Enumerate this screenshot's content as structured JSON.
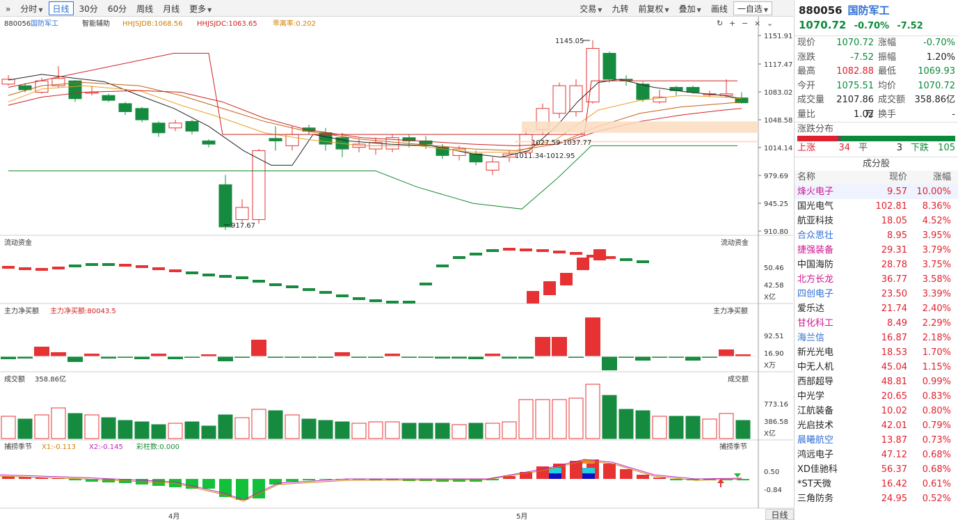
{
  "toolbar": {
    "left": [
      "分时",
      "日线",
      "30分",
      "60分",
      "周线",
      "月线",
      "更多"
    ],
    "active": "日线",
    "right": [
      "交易",
      "九转",
      "前复权",
      "叠加",
      "画线",
      "一自选"
    ]
  },
  "chart": {
    "legend_main": {
      "code": "880056",
      "name": "国防军工",
      "assist": "智能辅助",
      "jsdb": "HHJSJDB:1068.56",
      "jsdc": "HHJSJDC:1063.65",
      "lilv": "乖离率:0.202"
    },
    "price_axis": [
      "1151.91",
      "1117.47",
      "1083.02",
      "1048.58",
      "1014.14",
      "979.69",
      "945.25",
      "910.80"
    ],
    "annotations": {
      "high": "1145.05",
      "low": "917.67",
      "zone1": "1027.59-1037.77",
      "zone2": "1011.34-1012.95"
    },
    "sub1": {
      "title": "流动资金",
      "axis": [
        "50.46",
        "42.58"
      ],
      "unit": "X亿"
    },
    "sub2": {
      "title": "主力净买额",
      "value": "主力净买额:80043.5",
      "axis": [
        "92.51",
        "16.90"
      ],
      "unit": "X万"
    },
    "sub3": {
      "title": "成交额",
      "value": "358.86亿",
      "axis": [
        "773.16",
        "386.58"
      ],
      "unit": "X亿"
    },
    "sub4": {
      "title": "捕捞季节",
      "x1": "X1:-0.113",
      "x2": "X2:-0.145",
      "bar": "彩柱数:0.000",
      "axis": [
        "0.50",
        "-0.84"
      ]
    },
    "months": [
      "4月",
      "5月"
    ],
    "bottom_tab": "日线",
    "colors": {
      "up": "#e63232",
      "down": "#168a3f",
      "axis": "#444"
    }
  },
  "panel": {
    "code": "880056",
    "name": "国防军工",
    "price": "1070.72",
    "pct": "-0.70%",
    "chg": "-7.52",
    "quotes": [
      {
        "l1": "现价",
        "v1": "1070.72",
        "c1": "green",
        "l2": "涨幅",
        "v2": "-0.70%",
        "c2": "green"
      },
      {
        "l1": "涨跌",
        "v1": "-7.52",
        "c1": "green",
        "l2": "振幅",
        "v2": "1.20%",
        "c2": "dark"
      },
      {
        "l1": "最高",
        "v1": "1082.88",
        "c1": "red",
        "l2": "最低",
        "v2": "1069.93",
        "c2": "green"
      },
      {
        "l1": "今开",
        "v1": "1075.51",
        "c1": "green",
        "l2": "均价",
        "v2": "1070.72",
        "c2": "green"
      },
      {
        "l1": "成交量",
        "v1": "2107.86万",
        "c1": "dark",
        "l2": "成交额",
        "v2": "358.86亿",
        "c2": "dark"
      },
      {
        "l1": "量比",
        "v1": "1.02",
        "c1": "dark",
        "l2": "换手",
        "v2": "-",
        "c2": "dark"
      }
    ],
    "dist_title": "涨跌分布",
    "dist": {
      "up_label": "上涨",
      "up": "34",
      "flat_label": "平",
      "flat": "3",
      "down_label": "下跌",
      "down": "105"
    },
    "cfg_title": "成分股",
    "cfg_head": [
      "名称",
      "现价",
      "涨幅"
    ],
    "stocks": [
      {
        "n": "烽火电子",
        "p": "9.57",
        "c": "10.00%",
        "cls": "pink"
      },
      {
        "n": "国光电气",
        "p": "102.81",
        "c": "8.36%",
        "cls": "dark"
      },
      {
        "n": "航亚科技",
        "p": "18.05",
        "c": "4.52%",
        "cls": "dark"
      },
      {
        "n": "合众思壮",
        "p": "8.95",
        "c": "3.95%",
        "cls": "blue"
      },
      {
        "n": "捷强装备",
        "p": "29.31",
        "c": "3.79%",
        "cls": "pink"
      },
      {
        "n": "中国海防",
        "p": "28.78",
        "c": "3.75%",
        "cls": "dark"
      },
      {
        "n": "北方长龙",
        "p": "36.77",
        "c": "3.58%",
        "cls": "pink"
      },
      {
        "n": "四创电子",
        "p": "23.50",
        "c": "3.39%",
        "cls": "blue"
      },
      {
        "n": "爱乐达",
        "p": "21.74",
        "c": "2.40%",
        "cls": "dark"
      },
      {
        "n": "甘化科工",
        "p": "8.49",
        "c": "2.29%",
        "cls": "pink"
      },
      {
        "n": "海兰信",
        "p": "16.87",
        "c": "2.18%",
        "cls": "blue"
      },
      {
        "n": "新光光电",
        "p": "18.53",
        "c": "1.70%",
        "cls": "dark"
      },
      {
        "n": "中无人机",
        "p": "45.04",
        "c": "1.15%",
        "cls": "dark"
      },
      {
        "n": "西部超导",
        "p": "48.81",
        "c": "0.99%",
        "cls": "dark"
      },
      {
        "n": "中光学",
        "p": "20.65",
        "c": "0.83%",
        "cls": "dark"
      },
      {
        "n": "江航装备",
        "p": "10.02",
        "c": "0.80%",
        "cls": "dark"
      },
      {
        "n": "光启技术",
        "p": "42.01",
        "c": "0.79%",
        "cls": "dark"
      },
      {
        "n": "晨曦航空",
        "p": "13.87",
        "c": "0.73%",
        "cls": "blue"
      },
      {
        "n": "鸿远电子",
        "p": "47.12",
        "c": "0.68%",
        "cls": "dark"
      },
      {
        "n": "XD佳驰科",
        "p": "56.37",
        "c": "0.68%",
        "cls": "dark"
      },
      {
        "n": "*ST天微",
        "p": "16.42",
        "c": "0.61%",
        "cls": "dark"
      },
      {
        "n": "三角防务",
        "p": "24.95",
        "c": "0.52%",
        "cls": "dark"
      }
    ]
  }
}
